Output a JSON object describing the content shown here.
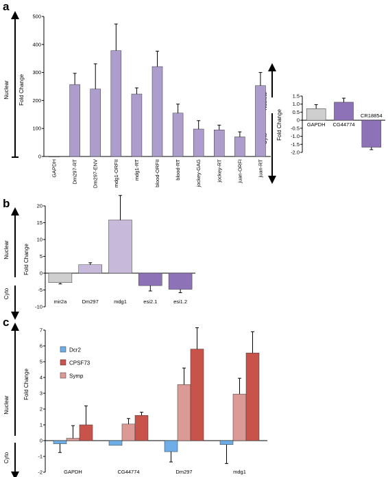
{
  "figure": {
    "panel_letters": [
      "a",
      "b",
      "c"
    ],
    "axis_labels": {
      "nuclear": "Nuclear",
      "cyto": "Cyto",
      "fold_change": "Fold Change"
    }
  },
  "colors": {
    "purple_light": "#c6b9da",
    "purple_mid": "#ad9dcc",
    "purple_dark": "#8e72b8",
    "gray": "#cfcfcf",
    "blue": "#6eaee6",
    "red": "#c7534a",
    "pink": "#dc9a96",
    "axis": "#000000"
  },
  "chart_data": [
    {
      "panel": "a",
      "type": "bar",
      "categories": [
        "GAPDH",
        "Dm297-RT",
        "Dm297-ENV",
        "mdg1-ORFII",
        "mdg1-RT",
        "blood-ORFII",
        "blood-RT",
        "jockey-GAG",
        "jockey-RT",
        "juan-ORFI",
        "juan-RT"
      ],
      "values": [
        0,
        257,
        241,
        378,
        223,
        321,
        155,
        98,
        95,
        70,
        253
      ],
      "errors": [
        0,
        40,
        90,
        95,
        22,
        55,
        32,
        30,
        17,
        18,
        47
      ],
      "yticks": [
        0,
        100,
        200,
        300,
        400,
        500
      ],
      "ylim": [
        0,
        500
      ],
      "ylabel": "Fold Change",
      "side_labels": [
        "Nuclear"
      ]
    },
    {
      "panel": "a-inset",
      "type": "bar",
      "categories": [
        "GAPDH",
        "CG44774",
        "CR18854"
      ],
      "values": [
        0.72,
        1.12,
        -1.68
      ],
      "errors": [
        0.25,
        0.25,
        0.15
      ],
      "yticks": [
        1.5,
        1.0,
        0.5,
        0,
        -0.5,
        -1.0,
        -1.5,
        -2.0
      ],
      "ytick_labels": [
        "1.5",
        "1.0",
        "0.5",
        "0",
        "-0.5",
        "-1.0",
        "-1.5",
        "-2.0"
      ],
      "ylim": [
        -2.0,
        1.5
      ],
      "ylabel": "Fold Change",
      "side_labels": [
        "Nuclear",
        "Cyto"
      ]
    },
    {
      "panel": "b",
      "type": "bar",
      "categories": [
        "mir2a",
        "Dm297",
        "mdg1",
        "esi2.1",
        "esi1.2"
      ],
      "values": [
        -2.8,
        2.5,
        15.8,
        -3.7,
        -4.8
      ],
      "errors": [
        0.4,
        0.6,
        7.3,
        1.6,
        1.0
      ],
      "yticks": [
        20,
        15,
        10,
        5,
        0,
        -5,
        -10
      ],
      "ylim": [
        -10,
        20
      ],
      "ylabel": "Fold Change",
      "side_labels": [
        "Nuclear",
        "Cyto"
      ]
    },
    {
      "panel": "c",
      "type": "bar",
      "categories": [
        "GAPDH",
        "CG44774",
        "Dm297",
        "mdg1"
      ],
      "series": [
        {
          "name": "Dcr2",
          "values": [
            -0.2,
            -0.3,
            -0.7,
            -0.25
          ],
          "errors": [
            0.55,
            0.0,
            0.65,
            1.2
          ]
        },
        {
          "name": "CPSF73",
          "values": [
            1.0,
            1.6,
            5.8,
            5.55
          ],
          "errors": [
            1.2,
            0.2,
            1.35,
            1.35
          ]
        },
        {
          "name": "Symp",
          "values": [
            0.15,
            1.05,
            3.55,
            2.95
          ],
          "errors": [
            0.8,
            0.35,
            1.05,
            1.0
          ]
        }
      ],
      "yticks": [
        7,
        6,
        5,
        4,
        3,
        2,
        1,
        0,
        -1,
        -2
      ],
      "ylim": [
        -2,
        7
      ],
      "ylabel": "Fold Change",
      "side_labels": [
        "Nuclear",
        "Cyto"
      ],
      "legend": "top-left"
    }
  ]
}
